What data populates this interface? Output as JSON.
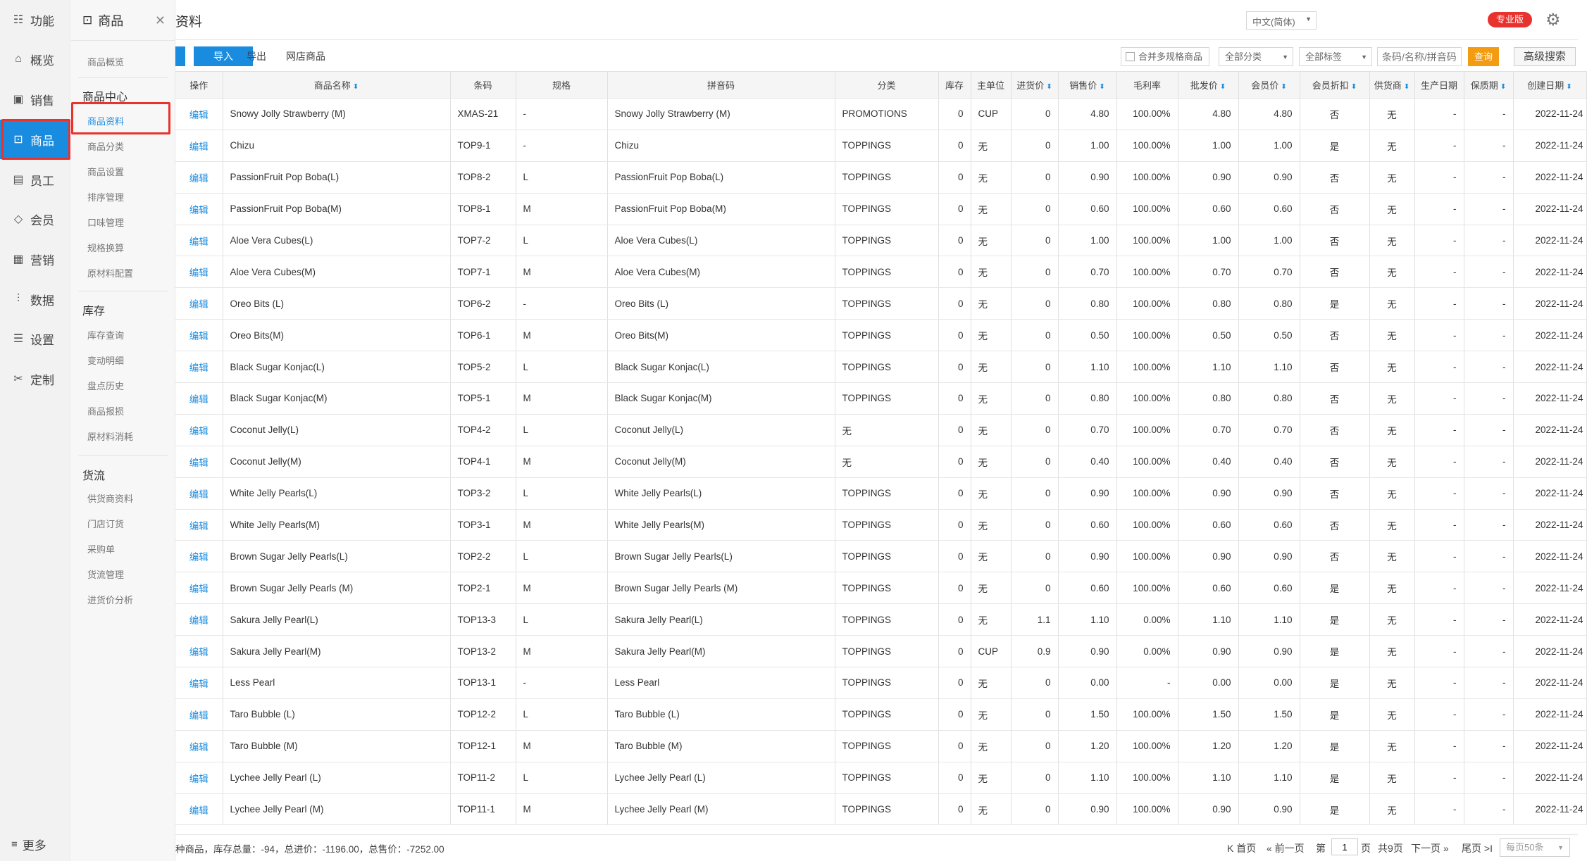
{
  "nav": {
    "items": [
      {
        "label": "功能",
        "icon": "☷"
      },
      {
        "label": "概览",
        "icon": "⌂"
      },
      {
        "label": "销售",
        "icon": "▣"
      },
      {
        "label": "商品",
        "icon": "⊡"
      },
      {
        "label": "员工",
        "icon": "▤"
      },
      {
        "label": "会员",
        "icon": "◇"
      },
      {
        "label": "营销",
        "icon": "▦"
      },
      {
        "label": "数据",
        "icon": "⫶"
      },
      {
        "label": "设置",
        "icon": "☰"
      },
      {
        "label": "定制",
        "icon": "✂"
      }
    ],
    "more": {
      "label": "更多",
      "icon": "≡"
    }
  },
  "subnav": {
    "title": "商品",
    "title_icon": "⊡",
    "close_icon": "✕",
    "overview": "商品概览",
    "groups": [
      {
        "title": "商品中心",
        "items": [
          "商品资料",
          "商品分类",
          "商品设置",
          "排序管理",
          "口味管理",
          "规格换算",
          "原材料配置"
        ]
      },
      {
        "title": "库存",
        "items": [
          "库存查询",
          "变动明细",
          "盘点历史",
          "商品报损",
          "原材料消耗"
        ]
      },
      {
        "title": "货流",
        "items": [
          "供货商资料",
          "门店订货",
          "采购单",
          "货流管理",
          "进货价分析"
        ]
      }
    ]
  },
  "topbar": {
    "title": "资料",
    "language": "中文(简体)",
    "edition": "专业版",
    "settings_icon": "⚙"
  },
  "toolbar": {
    "import_label": "导入",
    "export_label": "导出",
    "shop_label": "网店商品",
    "merge_label": "合并多规格商品",
    "category_filter": "全部分类",
    "tag_filter": "全部标签",
    "search_placeholder": "条码/名称/拼音码",
    "query_label": "查询",
    "advanced_label": "高级搜索"
  },
  "table": {
    "headers": [
      "操作",
      "商品名称",
      "条码",
      "规格",
      "拼音码",
      "分类",
      "库存",
      "主单位",
      "进货价",
      "销售价",
      "毛利率",
      "批发价",
      "会员价",
      "会员折扣",
      "供货商",
      "生产日期",
      "保质期",
      "创建日期"
    ],
    "sortable": [
      false,
      true,
      false,
      false,
      false,
      false,
      false,
      false,
      true,
      true,
      false,
      true,
      true,
      true,
      true,
      false,
      true,
      true
    ],
    "sort_icon": "⬍",
    "edit_label": "编辑",
    "rows": [
      [
        "Snowy Jolly Strawberry (M)",
        "XMAS-21",
        "-",
        "Snowy Jolly Strawberry (M)",
        "PROMOTIONS",
        "0",
        "CUP",
        "0",
        "4.80",
        "100.00%",
        "4.80",
        "4.80",
        "否",
        "无",
        "-",
        "-",
        "2022-11-24"
      ],
      [
        "Chizu",
        "TOP9-1",
        "-",
        "Chizu",
        "TOPPINGS",
        "0",
        "无",
        "0",
        "1.00",
        "100.00%",
        "1.00",
        "1.00",
        "是",
        "无",
        "-",
        "-",
        "2022-11-24"
      ],
      [
        "PassionFruit Pop Boba(L)",
        "TOP8-2",
        "L",
        "PassionFruit Pop Boba(L)",
        "TOPPINGS",
        "0",
        "无",
        "0",
        "0.90",
        "100.00%",
        "0.90",
        "0.90",
        "否",
        "无",
        "-",
        "-",
        "2022-11-24"
      ],
      [
        "PassionFruit Pop Boba(M)",
        "TOP8-1",
        "M",
        "PassionFruit Pop Boba(M)",
        "TOPPINGS",
        "0",
        "无",
        "0",
        "0.60",
        "100.00%",
        "0.60",
        "0.60",
        "否",
        "无",
        "-",
        "-",
        "2022-11-24"
      ],
      [
        "Aloe Vera Cubes(L)",
        "TOP7-2",
        "L",
        "Aloe Vera Cubes(L)",
        "TOPPINGS",
        "0",
        "无",
        "0",
        "1.00",
        "100.00%",
        "1.00",
        "1.00",
        "否",
        "无",
        "-",
        "-",
        "2022-11-24"
      ],
      [
        "Aloe Vera Cubes(M)",
        "TOP7-1",
        "M",
        "Aloe Vera Cubes(M)",
        "TOPPINGS",
        "0",
        "无",
        "0",
        "0.70",
        "100.00%",
        "0.70",
        "0.70",
        "否",
        "无",
        "-",
        "-",
        "2022-11-24"
      ],
      [
        "Oreo Bits (L)",
        "TOP6-2",
        "-",
        "Oreo Bits (L)",
        "TOPPINGS",
        "0",
        "无",
        "0",
        "0.80",
        "100.00%",
        "0.80",
        "0.80",
        "是",
        "无",
        "-",
        "-",
        "2022-11-24"
      ],
      [
        "Oreo Bits(M)",
        "TOP6-1",
        "M",
        "Oreo Bits(M)",
        "TOPPINGS",
        "0",
        "无",
        "0",
        "0.50",
        "100.00%",
        "0.50",
        "0.50",
        "否",
        "无",
        "-",
        "-",
        "2022-11-24"
      ],
      [
        "Black Sugar Konjac(L)",
        "TOP5-2",
        "L",
        "Black Sugar Konjac(L)",
        "TOPPINGS",
        "0",
        "无",
        "0",
        "1.10",
        "100.00%",
        "1.10",
        "1.10",
        "否",
        "无",
        "-",
        "-",
        "2022-11-24"
      ],
      [
        "Black Sugar Konjac(M)",
        "TOP5-1",
        "M",
        "Black Sugar Konjac(M)",
        "TOPPINGS",
        "0",
        "无",
        "0",
        "0.80",
        "100.00%",
        "0.80",
        "0.80",
        "否",
        "无",
        "-",
        "-",
        "2022-11-24"
      ],
      [
        "Coconut Jelly(L)",
        "TOP4-2",
        "L",
        "Coconut Jelly(L)",
        "无",
        "0",
        "无",
        "0",
        "0.70",
        "100.00%",
        "0.70",
        "0.70",
        "否",
        "无",
        "-",
        "-",
        "2022-11-24"
      ],
      [
        "Coconut Jelly(M)",
        "TOP4-1",
        "M",
        "Coconut Jelly(M)",
        "无",
        "0",
        "无",
        "0",
        "0.40",
        "100.00%",
        "0.40",
        "0.40",
        "否",
        "无",
        "-",
        "-",
        "2022-11-24"
      ],
      [
        "White Jelly Pearls(L)",
        "TOP3-2",
        "L",
        "White Jelly Pearls(L)",
        "TOPPINGS",
        "0",
        "无",
        "0",
        "0.90",
        "100.00%",
        "0.90",
        "0.90",
        "否",
        "无",
        "-",
        "-",
        "2022-11-24"
      ],
      [
        "White Jelly Pearls(M)",
        "TOP3-1",
        "M",
        "White Jelly Pearls(M)",
        "TOPPINGS",
        "0",
        "无",
        "0",
        "0.60",
        "100.00%",
        "0.60",
        "0.60",
        "否",
        "无",
        "-",
        "-",
        "2022-11-24"
      ],
      [
        "Brown Sugar Jelly Pearls(L)",
        "TOP2-2",
        "L",
        "Brown Sugar Jelly Pearls(L)",
        "TOPPINGS",
        "0",
        "无",
        "0",
        "0.90",
        "100.00%",
        "0.90",
        "0.90",
        "否",
        "无",
        "-",
        "-",
        "2022-11-24"
      ],
      [
        "Brown Sugar Jelly Pearls (M)",
        "TOP2-1",
        "M",
        "Brown Sugar Jelly Pearls (M)",
        "TOPPINGS",
        "0",
        "无",
        "0",
        "0.60",
        "100.00%",
        "0.60",
        "0.60",
        "是",
        "无",
        "-",
        "-",
        "2022-11-24"
      ],
      [
        "Sakura Jelly Pearl(L)",
        "TOP13-3",
        "L",
        "Sakura Jelly Pearl(L)",
        "TOPPINGS",
        "0",
        "无",
        "1.1",
        "1.10",
        "0.00%",
        "1.10",
        "1.10",
        "是",
        "无",
        "-",
        "-",
        "2022-11-24"
      ],
      [
        "Sakura Jelly Pearl(M)",
        "TOP13-2",
        "M",
        "Sakura Jelly Pearl(M)",
        "TOPPINGS",
        "0",
        "CUP",
        "0.9",
        "0.90",
        "0.00%",
        "0.90",
        "0.90",
        "是",
        "无",
        "-",
        "-",
        "2022-11-24"
      ],
      [
        "Less Pearl",
        "TOP13-1",
        "-",
        "Less Pearl",
        "TOPPINGS",
        "0",
        "无",
        "0",
        "0.00",
        "-",
        "0.00",
        "0.00",
        "是",
        "无",
        "-",
        "-",
        "2022-11-24"
      ],
      [
        "Taro Bubble (L)",
        "TOP12-2",
        "L",
        "Taro Bubble (L)",
        "TOPPINGS",
        "0",
        "无",
        "0",
        "1.50",
        "100.00%",
        "1.50",
        "1.50",
        "是",
        "无",
        "-",
        "-",
        "2022-11-24"
      ],
      [
        "Taro Bubble (M)",
        "TOP12-1",
        "M",
        "Taro Bubble (M)",
        "TOPPINGS",
        "0",
        "无",
        "0",
        "1.20",
        "100.00%",
        "1.20",
        "1.20",
        "是",
        "无",
        "-",
        "-",
        "2022-11-24"
      ],
      [
        "Lychee Jelly Pearl (L)",
        "TOP11-2",
        "L",
        "Lychee Jelly Pearl (L)",
        "TOPPINGS",
        "0",
        "无",
        "0",
        "1.10",
        "100.00%",
        "1.10",
        "1.10",
        "是",
        "无",
        "-",
        "-",
        "2022-11-24"
      ],
      [
        "Lychee Jelly Pearl (M)",
        "TOP11-1",
        "M",
        "Lychee Jelly Pearl (M)",
        "TOPPINGS",
        "0",
        "无",
        "0",
        "0.90",
        "100.00%",
        "0.90",
        "0.90",
        "是",
        "无",
        "-",
        "-",
        "2022-11-24"
      ]
    ]
  },
  "footer": {
    "summary": "种商品，库存总量：-94，总进价：-1196.00，总售价：-7252.00",
    "first_label": "K 首页",
    "prev_label": "« 前一页",
    "page_prefix": "第",
    "page_value": "1",
    "page_suffix": "页",
    "total_pages": "共9页",
    "next_label": "下一页 »",
    "last_label": "尾页 >I",
    "page_size": "每页50条"
  },
  "colors": {
    "accent": "#1a8ce0",
    "highlight": "#e8322e",
    "query": "#f39c12"
  }
}
